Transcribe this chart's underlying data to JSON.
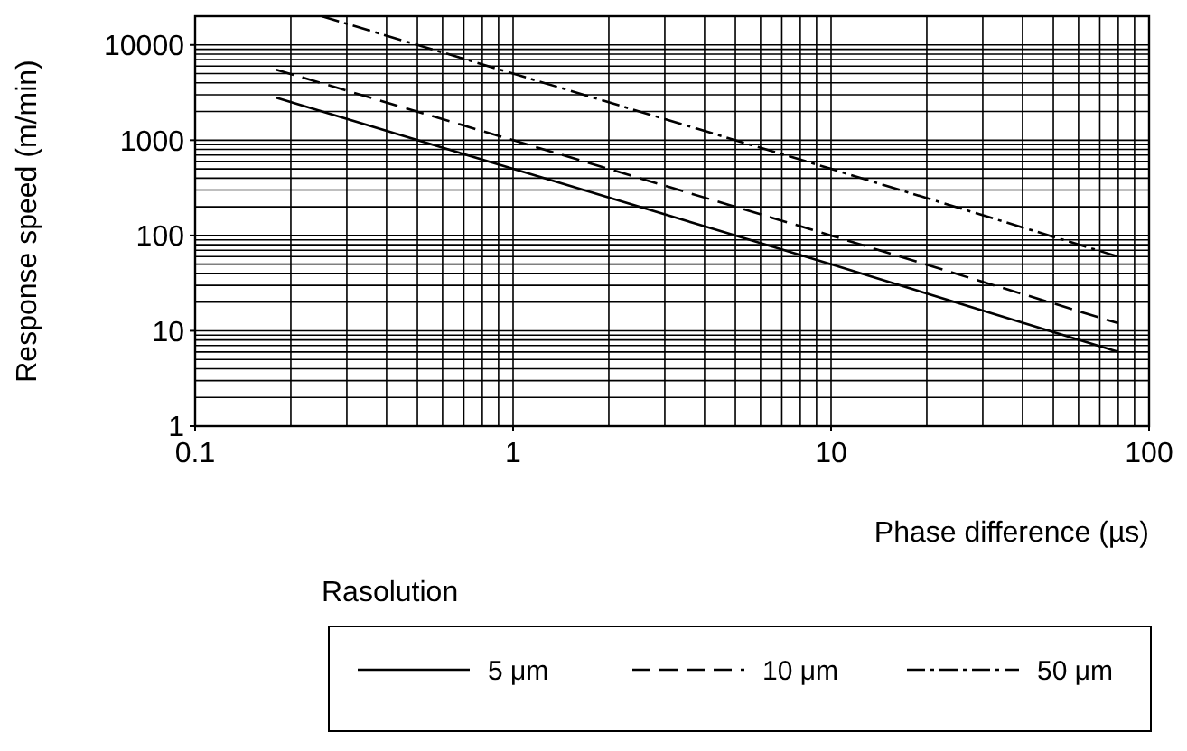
{
  "chart_data": {
    "type": "line",
    "xlabel": "Phase difference (µs)",
    "ylabel": "Response speed (m/min)",
    "legend_title": "Rasolution",
    "log": "xy",
    "grid": true,
    "legend": "bottom",
    "xlim": [
      0.1,
      100
    ],
    "xticks": [
      0.1,
      1,
      10,
      100
    ],
    "ylim": [
      1,
      20000
    ],
    "yticks": [
      1,
      10,
      100,
      1000,
      10000
    ],
    "series": [
      {
        "name": "5 μm",
        "color": "#000000",
        "line_style": "solid",
        "x": [
          0.18,
          1,
          10,
          80
        ],
        "values": [
          2800,
          500,
          50,
          6
        ]
      },
      {
        "name": "10 μm",
        "color": "#000000",
        "line_style": "dashed",
        "x": [
          0.18,
          1,
          10,
          80
        ],
        "values": [
          5500,
          1000,
          100,
          12
        ]
      },
      {
        "name": "50 μm",
        "color": "#000000",
        "line_style": "dashdot",
        "x": [
          0.25,
          1,
          10,
          80
        ],
        "values": [
          20000,
          5000,
          500,
          60
        ]
      }
    ]
  }
}
